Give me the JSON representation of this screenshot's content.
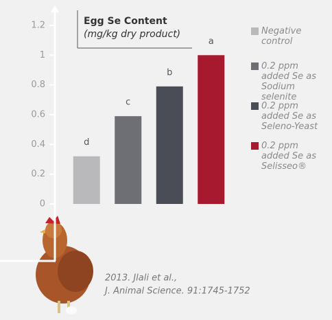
{
  "chart_data": {
    "type": "bar",
    "title": "Egg Se Content",
    "subtitle": "(mg/kg dry product)",
    "categories": [
      "Negative control",
      "0.2 ppm added Se as Sodium selenite",
      "0.2 ppm added Se as Seleno-Yeast",
      "0.2 ppm added Se as Selisseo®"
    ],
    "values": [
      0.32,
      0.59,
      0.79,
      1.0
    ],
    "letters": [
      "d",
      "c",
      "b",
      "a"
    ],
    "colors": [
      "#b9b9bb",
      "#6e6f74",
      "#4a4d55",
      "#a6192e"
    ],
    "ylim": [
      0,
      1.2
    ],
    "yticks": [
      0,
      0.2,
      0.4,
      0.6,
      0.8,
      1,
      1.2
    ],
    "source": [
      "2013. Jlali et al.,",
      "J. Animal Science. 91:1745-1752"
    ]
  }
}
